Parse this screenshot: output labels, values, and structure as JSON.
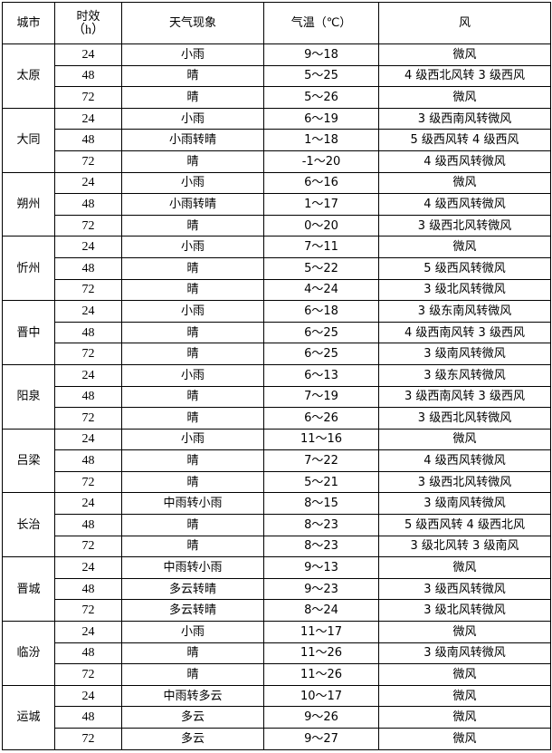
{
  "header": {
    "city": "城市",
    "lead_line1": "时效",
    "lead_line2": "（h）",
    "weather": "天气现象",
    "temp": "气温（℃）",
    "wind": "风"
  },
  "cities": [
    {
      "name": "太原",
      "rows": [
        {
          "lead": "24",
          "weather": "小雨",
          "temp": "9～18",
          "wind": "微风"
        },
        {
          "lead": "48",
          "weather": "晴",
          "temp": "5～25",
          "wind": "4 级西北风转 3 级西风"
        },
        {
          "lead": "72",
          "weather": "晴",
          "temp": "5～26",
          "wind": "微风"
        }
      ]
    },
    {
      "name": "大同",
      "rows": [
        {
          "lead": "24",
          "weather": "小雨",
          "temp": "6～19",
          "wind": "3 级西南风转微风"
        },
        {
          "lead": "48",
          "weather": "小雨转晴",
          "temp": "1～18",
          "wind": "5 级西风转 4 级西风"
        },
        {
          "lead": "72",
          "weather": "晴",
          "temp": "-1～20",
          "wind": "4 级西风转微风"
        }
      ]
    },
    {
      "name": "朔州",
      "rows": [
        {
          "lead": "24",
          "weather": "小雨",
          "temp": "6～16",
          "wind": "微风"
        },
        {
          "lead": "48",
          "weather": "小雨转晴",
          "temp": "1～17",
          "wind": "4 级西风转微风"
        },
        {
          "lead": "72",
          "weather": "晴",
          "temp": "0～20",
          "wind": "3 级西北风转微风"
        }
      ]
    },
    {
      "name": "忻州",
      "rows": [
        {
          "lead": "24",
          "weather": "小雨",
          "temp": "7～11",
          "wind": "微风"
        },
        {
          "lead": "48",
          "weather": "晴",
          "temp": "5～22",
          "wind": "5 级西风转微风"
        },
        {
          "lead": "72",
          "weather": "晴",
          "temp": "4～24",
          "wind": "3 级北风转微风"
        }
      ]
    },
    {
      "name": "晋中",
      "rows": [
        {
          "lead": "24",
          "weather": "小雨",
          "temp": "6～18",
          "wind": "3 级东南风转微风"
        },
        {
          "lead": "48",
          "weather": "晴",
          "temp": "6～25",
          "wind": "4 级西南风转 3 级西风"
        },
        {
          "lead": "72",
          "weather": "晴",
          "temp": "6～25",
          "wind": "3 级南风转微风"
        }
      ]
    },
    {
      "name": "阳泉",
      "rows": [
        {
          "lead": "24",
          "weather": "小雨",
          "temp": "6～13",
          "wind": "3 级东风转微风"
        },
        {
          "lead": "48",
          "weather": "晴",
          "temp": "7～19",
          "wind": "3 级西南风转 3 级西风"
        },
        {
          "lead": "72",
          "weather": "晴",
          "temp": "6～26",
          "wind": "3 级西北风转微风"
        }
      ]
    },
    {
      "name": "吕梁",
      "rows": [
        {
          "lead": "24",
          "weather": "小雨",
          "temp": "11～16",
          "wind": "微风"
        },
        {
          "lead": "48",
          "weather": "晴",
          "temp": "7～22",
          "wind": "4 级西风转微风"
        },
        {
          "lead": "72",
          "weather": "晴",
          "temp": "5～21",
          "wind": "3 级西北风转微风"
        }
      ]
    },
    {
      "name": "长治",
      "rows": [
        {
          "lead": "24",
          "weather": "中雨转小雨",
          "temp": "8～15",
          "wind": "3 级南风转微风"
        },
        {
          "lead": "48",
          "weather": "晴",
          "temp": "8～23",
          "wind": "5 级西风转 4 级西北风"
        },
        {
          "lead": "72",
          "weather": "晴",
          "temp": "8～23",
          "wind": "3 级北风转 3 级南风"
        }
      ]
    },
    {
      "name": "晋城",
      "rows": [
        {
          "lead": "24",
          "weather": "中雨转小雨",
          "temp": "9～13",
          "wind": "微风"
        },
        {
          "lead": "48",
          "weather": "多云转晴",
          "temp": "9～23",
          "wind": "3 级西风转微风"
        },
        {
          "lead": "72",
          "weather": "多云转晴",
          "temp": "8～24",
          "wind": "3 级北风转微风"
        }
      ]
    },
    {
      "name": "临汾",
      "rows": [
        {
          "lead": "24",
          "weather": "小雨",
          "temp": "11～17",
          "wind": "微风"
        },
        {
          "lead": "48",
          "weather": "晴",
          "temp": "11～26",
          "wind": "3 级南风转微风"
        },
        {
          "lead": "72",
          "weather": "晴",
          "temp": "11～26",
          "wind": "微风"
        }
      ]
    },
    {
      "name": "运城",
      "rows": [
        {
          "lead": "24",
          "weather": "中雨转多云",
          "temp": "10～17",
          "wind": "微风"
        },
        {
          "lead": "48",
          "weather": "多云",
          "temp": "9～26",
          "wind": "微风"
        },
        {
          "lead": "72",
          "weather": "多云",
          "temp": "9～27",
          "wind": "微风"
        }
      ]
    }
  ]
}
